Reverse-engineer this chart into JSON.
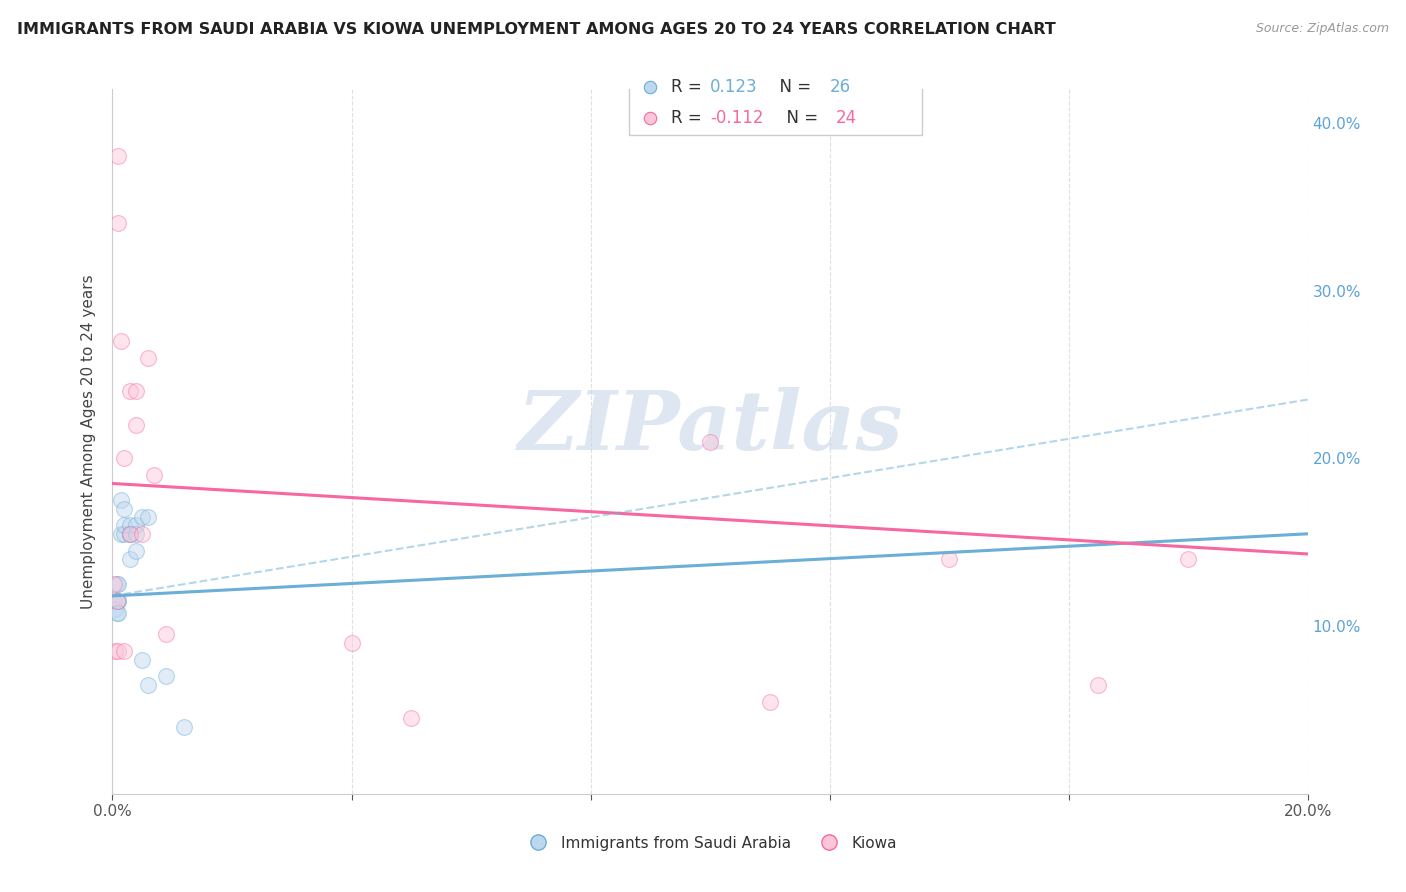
{
  "title": "IMMIGRANTS FROM SAUDI ARABIA VS KIOWA UNEMPLOYMENT AMONG AGES 20 TO 24 YEARS CORRELATION CHART",
  "source": "Source: ZipAtlas.com",
  "ylabel": "Unemployment Among Ages 20 to 24 years",
  "xlim": [
    0.0,
    0.2
  ],
  "ylim": [
    0.0,
    0.42
  ],
  "right_yticks": [
    0.1,
    0.2,
    0.3,
    0.4
  ],
  "right_yticklabels": [
    "10.0%",
    "20.0%",
    "30.0%",
    "40.0%"
  ],
  "legend1_line1": "R =  0.123   N = 26",
  "legend1_line2": "R = -0.112   N = 24",
  "blue_scatter_x": [
    0.0003,
    0.0005,
    0.0007,
    0.0008,
    0.001,
    0.001,
    0.001,
    0.001,
    0.0015,
    0.0015,
    0.002,
    0.002,
    0.002,
    0.003,
    0.003,
    0.003,
    0.003,
    0.004,
    0.004,
    0.004,
    0.005,
    0.005,
    0.006,
    0.006,
    0.009,
    0.012
  ],
  "blue_scatter_y": [
    0.115,
    0.11,
    0.125,
    0.108,
    0.115,
    0.125,
    0.115,
    0.108,
    0.175,
    0.155,
    0.155,
    0.16,
    0.17,
    0.155,
    0.16,
    0.155,
    0.14,
    0.16,
    0.155,
    0.145,
    0.08,
    0.165,
    0.165,
    0.065,
    0.07,
    0.04
  ],
  "pink_scatter_x": [
    0.0003,
    0.0005,
    0.0007,
    0.001,
    0.001,
    0.001,
    0.0015,
    0.002,
    0.002,
    0.003,
    0.003,
    0.004,
    0.004,
    0.005,
    0.006,
    0.007,
    0.009,
    0.04,
    0.05,
    0.1,
    0.11,
    0.14,
    0.165,
    0.18
  ],
  "pink_scatter_y": [
    0.125,
    0.085,
    0.115,
    0.38,
    0.34,
    0.085,
    0.27,
    0.2,
    0.085,
    0.24,
    0.155,
    0.24,
    0.22,
    0.155,
    0.26,
    0.19,
    0.095,
    0.09,
    0.045,
    0.21,
    0.055,
    0.14,
    0.065,
    0.14
  ],
  "blue_trend_x": [
    0.0,
    0.2
  ],
  "blue_trend_y": [
    0.118,
    0.155
  ],
  "pink_trend_x": [
    0.0,
    0.2
  ],
  "pink_trend_y": [
    0.185,
    0.143
  ],
  "gray_trend_x": [
    0.0,
    0.2
  ],
  "gray_trend_y": [
    0.118,
    0.235
  ],
  "scatter_size": 130,
  "scatter_alpha": 0.45,
  "blue_color": "#6baed6",
  "pink_color": "#f768a1",
  "blue_fill": "#bdd7ee",
  "pink_fill": "#fcc5d8",
  "watermark_text": "ZIPatlas",
  "watermark_color": "#c8d8e8",
  "grid_color": "#e0e0e0",
  "background_color": "#ffffff",
  "title_color": "#222222",
  "source_color": "#999999",
  "axis_color": "#cccccc",
  "tick_color": "#555555",
  "right_tick_color": "#5ba3d9",
  "ylabel_color": "#444444"
}
